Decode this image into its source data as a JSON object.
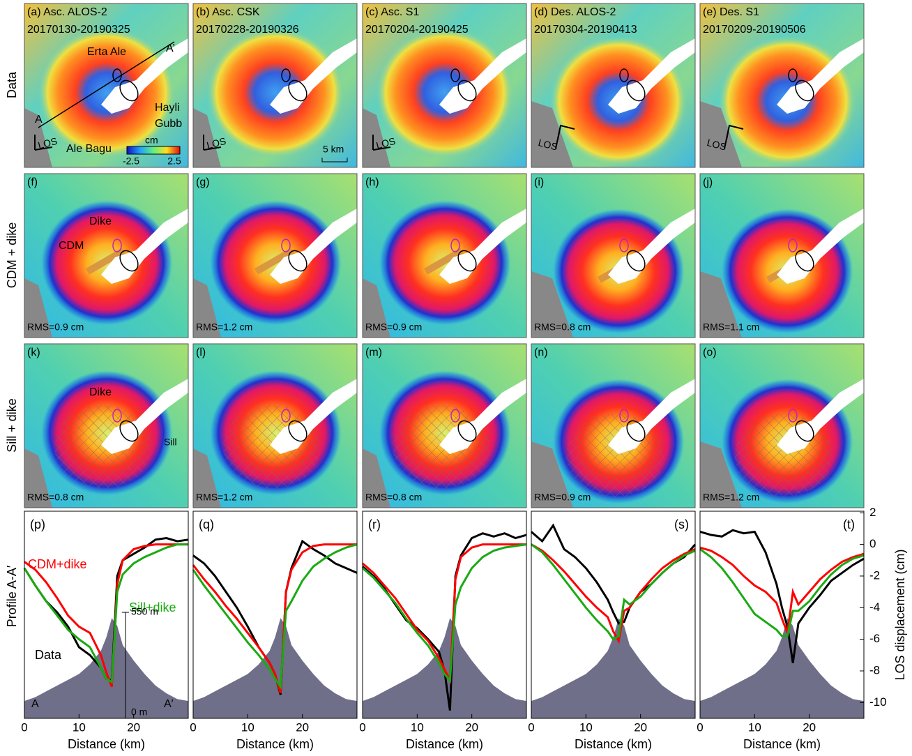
{
  "row_labels": [
    "Data",
    "CDM + dike",
    "Sill + dike",
    "Profile A-A′"
  ],
  "maps": {
    "panels": [
      {
        "label": "(a) Asc. ALOS-2",
        "dates": "20170130-20190325"
      },
      {
        "label": "(b) Asc. CSK",
        "dates": "20170228-20190326"
      },
      {
        "label": "(c) Asc. S1",
        "dates": "20170204-20190425"
      },
      {
        "label": "(d) Des. ALOS-2",
        "dates": "20170304-20190413"
      },
      {
        "label": "(e) Des. S1",
        "dates": "20170209-20190506"
      },
      {
        "label": "(f)",
        "rms": "RMS=0.9 cm"
      },
      {
        "label": "(g)",
        "rms": "RMS=1.2 cm"
      },
      {
        "label": "(h)",
        "rms": "RMS=0.9 cm"
      },
      {
        "label": "(i)",
        "rms": "RMS=0.8 cm"
      },
      {
        "label": "(j)",
        "rms": "RMS=1.1 cm"
      },
      {
        "label": "(k)",
        "rms": "RMS=0.8 cm"
      },
      {
        "label": "(l)",
        "rms": "RMS=1.2 cm"
      },
      {
        "label": "(m)",
        "rms": "RMS=0.8 cm"
      },
      {
        "label": "(n)",
        "rms": "RMS=0.9 cm"
      },
      {
        "label": "(o)",
        "rms": "RMS=1.2 cm"
      }
    ],
    "los": "LOS",
    "colorbar": {
      "unit": "cm",
      "ticks": [
        -2.5,
        2.5
      ]
    },
    "annotations": [
      "Erta Ale",
      "A’",
      "A",
      "Hayli",
      "Gubb",
      "Ale Bagu",
      "5 km",
      "Dike",
      "CDM",
      "Dike",
      "Sill"
    ]
  },
  "chart_data": [
    {
      "type": "line",
      "label": "(p)",
      "x_label": "Distance (km)",
      "x": [
        0,
        2,
        4,
        6,
        8,
        10,
        12,
        14,
        15,
        16,
        17,
        18,
        20,
        22,
        24,
        26,
        28,
        30
      ],
      "xlim": [
        0,
        30
      ],
      "xticks": [
        0,
        10,
        20
      ],
      "ylim": [
        -11,
        2.1
      ],
      "series": [
        {
          "name": "Data",
          "color": "#000000",
          "values": [
            -1.5,
            -2.6,
            -3.6,
            -4.3,
            -5.2,
            -6.5,
            -7.0,
            -7.8,
            -8.5,
            -8.6,
            -2.0,
            -1.0,
            -0.6,
            -0.2,
            0.3,
            0.4,
            0.2,
            0.3
          ]
        },
        {
          "name": "CDM+dike",
          "color": "#ff0000",
          "values": [
            -1.1,
            -1.6,
            -2.4,
            -3.4,
            -4.5,
            -5.2,
            -5.6,
            -7.0,
            -8.1,
            -9.0,
            -2.5,
            -1.0,
            -0.3,
            -0.1,
            0,
            0,
            0,
            0
          ]
        },
        {
          "name": "Sill+dike",
          "color": "#1aaa12",
          "values": [
            -1.5,
            -2.6,
            -3.6,
            -4.5,
            -5.4,
            -6.0,
            -6.5,
            -7.8,
            -8.5,
            -8.7,
            -3.0,
            -1.9,
            -1.2,
            -0.8,
            -0.5,
            -0.2,
            0,
            0
          ]
        }
      ],
      "topography": [
        90,
        110,
        140,
        170,
        200,
        230,
        280,
        350,
        420,
        520,
        480,
        380,
        300,
        230,
        170,
        130,
        100,
        90
      ],
      "topo_scale": [
        {
          "value": 0,
          "label": "0 m"
        },
        {
          "value": 550,
          "label": "550 m"
        }
      ],
      "annotations": [
        "A",
        "A′"
      ]
    },
    {
      "type": "line",
      "label": "(q)",
      "x_label": "Distance (km)",
      "x": [
        0,
        2,
        4,
        6,
        8,
        10,
        12,
        14,
        15,
        16,
        17,
        18,
        20,
        22,
        24,
        26,
        28,
        30
      ],
      "xlim": [
        0,
        30
      ],
      "xticks": [
        0,
        10,
        20
      ],
      "ylim": [
        -11,
        2.1
      ],
      "series": [
        {
          "color": "#000000",
          "values": [
            -0.7,
            -1.2,
            -2.0,
            -3.0,
            -4.0,
            -5.2,
            -6.5,
            -7.5,
            -8.2,
            -9.5,
            -3.0,
            -1.5,
            0.2,
            -0.3,
            -0.7,
            -1.2,
            -1.5,
            -1.8
          ]
        },
        {
          "color": "#ff0000",
          "values": [
            -1.3,
            -2.2,
            -3.0,
            -3.9,
            -4.7,
            -5.6,
            -6.5,
            -7.5,
            -8.2,
            -9.4,
            -3.0,
            -1.6,
            -0.5,
            -0.1,
            0,
            0,
            0,
            0
          ]
        },
        {
          "color": "#1aaa12",
          "values": [
            -1.6,
            -2.6,
            -3.5,
            -4.4,
            -5.3,
            -6.2,
            -7.0,
            -7.9,
            -8.5,
            -9.0,
            -4.2,
            -3.6,
            -2.3,
            -1.4,
            -0.9,
            -0.5,
            -0.2,
            0
          ]
        }
      ],
      "topography": [
        90,
        110,
        140,
        170,
        200,
        230,
        280,
        350,
        420,
        520,
        480,
        380,
        300,
        230,
        170,
        130,
        100,
        90
      ]
    },
    {
      "type": "line",
      "label": "(r)",
      "x_label": "Distance (km)",
      "x": [
        0,
        2,
        4,
        6,
        8,
        10,
        12,
        14,
        15,
        16,
        17,
        18,
        20,
        22,
        24,
        26,
        28,
        30
      ],
      "xlim": [
        0,
        30
      ],
      "xticks": [
        0,
        10,
        20
      ],
      "ylim": [
        -11,
        2.1
      ],
      "series": [
        {
          "color": "#000000",
          "values": [
            -1.4,
            -2.0,
            -2.8,
            -3.8,
            -4.8,
            -5.3,
            -6.0,
            -6.8,
            -8.0,
            -10.5,
            -2.0,
            -0.7,
            0.4,
            0.7,
            0.5,
            0.7,
            0.4,
            0.6
          ]
        },
        {
          "color": "#ff0000",
          "values": [
            -1.2,
            -1.8,
            -2.6,
            -3.4,
            -4.4,
            -5.4,
            -6.1,
            -7.2,
            -7.9,
            -8.6,
            -2.2,
            -0.8,
            -0.2,
            0,
            0,
            0,
            0,
            0
          ]
        },
        {
          "color": "#1aaa12",
          "values": [
            -1.5,
            -2.1,
            -2.9,
            -3.7,
            -4.7,
            -5.6,
            -6.4,
            -7.5,
            -8.2,
            -8.6,
            -3.8,
            -2.7,
            -1.5,
            -0.8,
            -0.4,
            -0.2,
            -0.1,
            0
          ]
        }
      ],
      "topography": [
        90,
        110,
        140,
        170,
        200,
        230,
        280,
        350,
        420,
        520,
        480,
        380,
        300,
        230,
        170,
        130,
        100,
        90
      ]
    },
    {
      "type": "line",
      "label": "(s)",
      "x_label": "Distance (km)",
      "x": [
        0,
        2,
        4,
        6,
        8,
        10,
        12,
        14,
        15,
        16,
        17,
        18,
        20,
        22,
        24,
        26,
        28,
        30
      ],
      "xlim": [
        0,
        30
      ],
      "xticks": [
        0,
        10,
        20
      ],
      "ylim": [
        -11,
        2.1
      ],
      "series": [
        {
          "color": "#000000",
          "values": [
            0.8,
            0.2,
            1.2,
            -0.3,
            -0.8,
            -1.5,
            -2.4,
            -3.5,
            -4.3,
            -5.0,
            -4.9,
            -4.0,
            -3.0,
            -2.5,
            -1.8,
            -1.2,
            -0.8,
            0
          ]
        },
        {
          "color": "#ff0000",
          "values": [
            0,
            -0.4,
            -1.0,
            -1.7,
            -2.5,
            -3.3,
            -4.0,
            -4.6,
            -5.5,
            -6.1,
            -4.2,
            -4.0,
            -3.0,
            -2.2,
            -1.5,
            -1.0,
            -0.6,
            -0.3
          ]
        },
        {
          "color": "#1aaa12",
          "values": [
            0,
            -0.5,
            -1.3,
            -2.2,
            -3.1,
            -4.0,
            -4.8,
            -5.5,
            -6.0,
            -5.8,
            -3.5,
            -3.8,
            -3.3,
            -2.5,
            -1.8,
            -1.2,
            -0.7,
            -0.4
          ]
        }
      ],
      "topography": [
        90,
        110,
        140,
        170,
        200,
        230,
        280,
        350,
        420,
        520,
        480,
        380,
        300,
        230,
        170,
        130,
        100,
        90
      ]
    },
    {
      "type": "line",
      "label": "(t)",
      "x_label": "Distance (km)",
      "y_label": "LOS displacement (cm)",
      "x": [
        0,
        2,
        4,
        6,
        8,
        10,
        12,
        14,
        15,
        16,
        17,
        18,
        20,
        22,
        24,
        26,
        28,
        30
      ],
      "xlim": [
        0,
        30
      ],
      "xticks": [
        0,
        10,
        20
      ],
      "ylim": [
        -11,
        2.1
      ],
      "yticks": [
        2,
        0,
        -2,
        -4,
        -6,
        -8,
        -10
      ],
      "series": [
        {
          "color": "#000000",
          "values": [
            0.8,
            0.6,
            0.5,
            0.9,
            0.7,
            0.8,
            -0.5,
            -2.5,
            -4.0,
            -5.2,
            -7.5,
            -5.0,
            -4.0,
            -3.2,
            -2.3,
            -1.8,
            -1.3,
            -0.9
          ]
        },
        {
          "color": "#ff0000",
          "values": [
            -0.2,
            -0.4,
            -0.8,
            -1.3,
            -2.0,
            -2.6,
            -3.0,
            -3.7,
            -4.7,
            -5.6,
            -3.0,
            -3.8,
            -3.0,
            -2.2,
            -1.6,
            -1.1,
            -0.8,
            -0.6
          ]
        },
        {
          "color": "#1aaa12",
          "values": [
            -0.3,
            -0.8,
            -1.5,
            -2.4,
            -3.4,
            -4.4,
            -4.9,
            -5.4,
            -5.8,
            -5.8,
            -4.2,
            -4.2,
            -3.6,
            -2.7,
            -1.9,
            -1.3,
            -0.9,
            -0.7
          ]
        }
      ],
      "topography": [
        90,
        110,
        140,
        170,
        200,
        230,
        280,
        350,
        420,
        520,
        480,
        380,
        300,
        230,
        170,
        130,
        100,
        90
      ]
    }
  ]
}
